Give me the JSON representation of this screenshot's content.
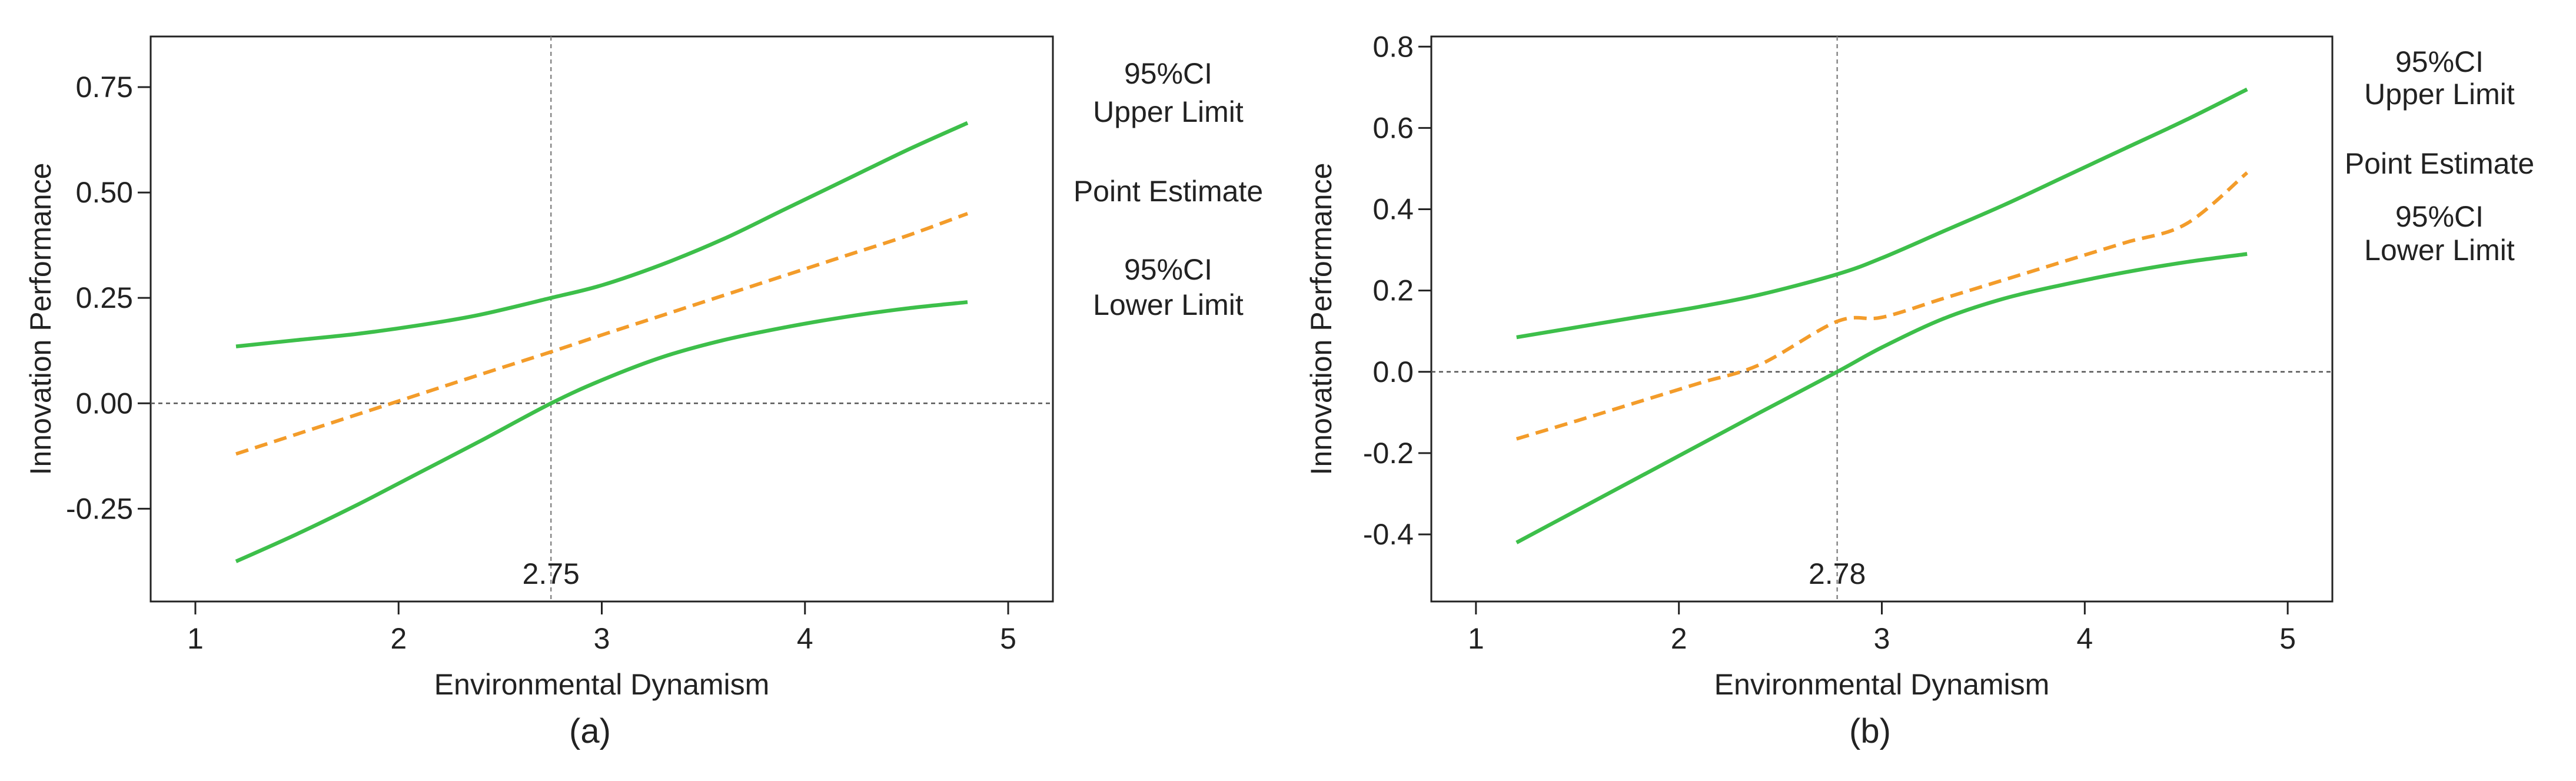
{
  "colors": {
    "ci": "#3dbf4a",
    "point": "#f39c2a",
    "axis": "#222222",
    "reference": "#555555",
    "background": "#ffffff"
  },
  "chart_data": [
    {
      "type": "line",
      "panel_label": "(a)",
      "xlabel": "Environmental Dynamism",
      "ylabel": "Innovation Performance",
      "xlim": [
        0.78,
        5.22
      ],
      "ylim": [
        -0.47,
        0.87
      ],
      "xticks": [
        1,
        2,
        3,
        4,
        5
      ],
      "xtick_labels": [
        "1",
        "2",
        "3",
        "4",
        "5"
      ],
      "yticks": [
        -0.25,
        0.0,
        0.25,
        0.5,
        0.75
      ],
      "ytick_labels": [
        "-0.25",
        "0.00",
        "0.25",
        "0.50",
        "0.75"
      ],
      "reference_x": 2.75,
      "reference_x_label": "2.75",
      "reference_y": 0.0,
      "x": [
        1.2,
        1.5,
        1.8,
        2.1,
        2.4,
        2.75,
        3.0,
        3.3,
        3.6,
        3.9,
        4.2,
        4.5,
        4.8
      ],
      "series": [
        {
          "name": "95%CI Upper Limit",
          "label_lines": [
            "95%CI",
            "Upper Limit"
          ],
          "style": "solid",
          "values": [
            0.135,
            0.15,
            0.165,
            0.185,
            0.21,
            0.25,
            0.28,
            0.33,
            0.39,
            0.46,
            0.53,
            0.6,
            0.665
          ]
        },
        {
          "name": "Point Estimate",
          "label_lines": [
            "Point Estimate"
          ],
          "style": "dashed",
          "values": [
            -0.12,
            -0.073,
            -0.026,
            0.021,
            0.068,
            0.122,
            0.162,
            0.209,
            0.256,
            0.303,
            0.35,
            0.397,
            0.45
          ]
        },
        {
          "name": "95%CI Lower Limit",
          "label_lines": [
            "95%CI",
            "Lower Limit"
          ],
          "style": "solid",
          "values": [
            -0.375,
            -0.31,
            -0.24,
            -0.165,
            -0.09,
            0.0,
            0.055,
            0.11,
            0.15,
            0.18,
            0.205,
            0.225,
            0.24
          ]
        }
      ]
    },
    {
      "type": "line",
      "panel_label": "(b)",
      "xlabel": "Environmental Dynamism",
      "ylabel": "Innovation Performance",
      "xlim": [
        0.78,
        5.22
      ],
      "ylim": [
        -0.565,
        0.825
      ],
      "xticks": [
        1,
        2,
        3,
        4,
        5
      ],
      "xtick_labels": [
        "1",
        "2",
        "3",
        "4",
        "5"
      ],
      "yticks": [
        -0.4,
        -0.2,
        0.0,
        0.2,
        0.4,
        0.6,
        0.8
      ],
      "ytick_labels": [
        "-0.4",
        "-0.2",
        "0.0",
        "0.2",
        "0.4",
        "0.6",
        "0.8"
      ],
      "reference_x": 2.78,
      "reference_x_label": "2.78",
      "reference_y": 0.0,
      "x": [
        1.2,
        1.5,
        1.8,
        2.1,
        2.4,
        2.78,
        3.0,
        3.3,
        3.6,
        3.9,
        4.2,
        4.5,
        4.8
      ],
      "series": [
        {
          "name": "95%CI Upper Limit",
          "label_lines": [
            "95%CI",
            "Upper Limit"
          ],
          "style": "solid",
          "values": [
            0.085,
            0.11,
            0.135,
            0.16,
            0.19,
            0.24,
            0.28,
            0.345,
            0.41,
            0.48,
            0.55,
            0.62,
            0.695
          ]
        },
        {
          "name": "Point Estimate",
          "label_lines": [
            "Point Estimate"
          ],
          "style": "dashed",
          "values": [
            -0.165,
            -0.12,
            -0.074,
            -0.028,
            0.018,
            0.124,
            0.134,
            0.18,
            0.226,
            0.272,
            0.318,
            0.364,
            0.49
          ]
        },
        {
          "name": "95%CI Lower Limit",
          "label_lines": [
            "95%CI",
            "Lower Limit"
          ],
          "style": "solid",
          "values": [
            -0.42,
            -0.34,
            -0.26,
            -0.18,
            -0.1,
            0.0,
            0.06,
            0.13,
            0.18,
            0.215,
            0.245,
            0.27,
            0.29
          ]
        }
      ]
    }
  ]
}
